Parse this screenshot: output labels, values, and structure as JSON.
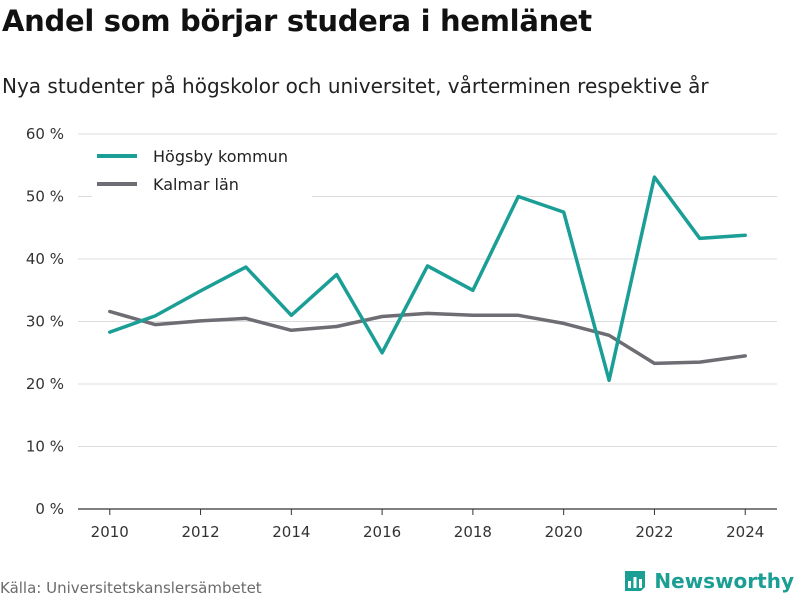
{
  "title": "Andel som börjar studera i hemlänet",
  "subtitle": "Nya studenter på högskolor och universitet, vårterminen respektive år",
  "source": "Källa: Universitetskanslersämbetet",
  "brand": {
    "name": "Newsworthy",
    "icon": "bar-chart-logo-icon",
    "color": "#1b9e93"
  },
  "chart_data": {
    "type": "line",
    "x": [
      2010,
      2011,
      2012,
      2013,
      2014,
      2015,
      2016,
      2017,
      2018,
      2019,
      2020,
      2021,
      2022,
      2023,
      2024
    ],
    "xticks": [
      2010,
      2012,
      2014,
      2016,
      2018,
      2020,
      2022,
      2024
    ],
    "xlim": [
      2009.3,
      2024.7
    ],
    "ylim": [
      0,
      60
    ],
    "yticks": [
      0,
      10,
      20,
      30,
      40,
      50,
      60
    ],
    "ytick_labels": [
      "0 %",
      "10 %",
      "20 %",
      "30 %",
      "40 %",
      "50 %",
      "60 %"
    ],
    "grid": true,
    "legend_position": "top-left",
    "series": [
      {
        "name": "Högsby kommun",
        "color": "#1a9e96",
        "values": [
          28.3,
          30.9,
          34.9,
          38.7,
          31.0,
          37.5,
          25.0,
          38.9,
          35.0,
          50.0,
          47.5,
          20.6,
          53.1,
          43.3,
          43.8
        ]
      },
      {
        "name": "Kalmar län",
        "color": "#6e6d74",
        "values": [
          31.6,
          29.5,
          30.1,
          30.5,
          28.6,
          29.2,
          30.8,
          31.3,
          31.0,
          31.0,
          29.7,
          27.8,
          23.3,
          23.5,
          24.5
        ]
      }
    ]
  }
}
